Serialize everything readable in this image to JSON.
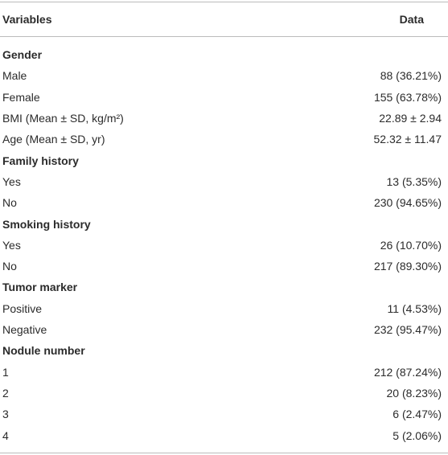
{
  "table": {
    "header": [
      "Variables",
      "Data"
    ],
    "rows": [
      [
        "Gender"
      ],
      [
        "Male",
        "88 (36.21%)"
      ],
      [
        "Female",
        "155 (63.78%)"
      ],
      [
        "BMI (Mean ± SD, kg/m²)",
        "22.89 ± 2.94"
      ],
      [
        "Age (Mean ± SD, yr)",
        "52.32 ± 11.47"
      ],
      [
        "Family history"
      ],
      [
        "Yes",
        "13 (5.35%)"
      ],
      [
        "No",
        "230 (94.65%)"
      ],
      [
        "Smoking history"
      ],
      [
        "Yes",
        "26 (10.70%)"
      ],
      [
        "No",
        "217 (89.30%)"
      ],
      [
        "Tumor marker"
      ],
      [
        "Positive",
        "11 (4.53%)"
      ],
      [
        "Negative",
        "232 (95.47%)"
      ],
      [
        "Nodule number"
      ],
      [
        "1",
        "212 (87.24%)"
      ],
      [
        "2",
        "20 (8.23%)"
      ],
      [
        "3",
        "6 (2.47%)"
      ],
      [
        "4",
        "5 (2.06%)"
      ]
    ]
  }
}
